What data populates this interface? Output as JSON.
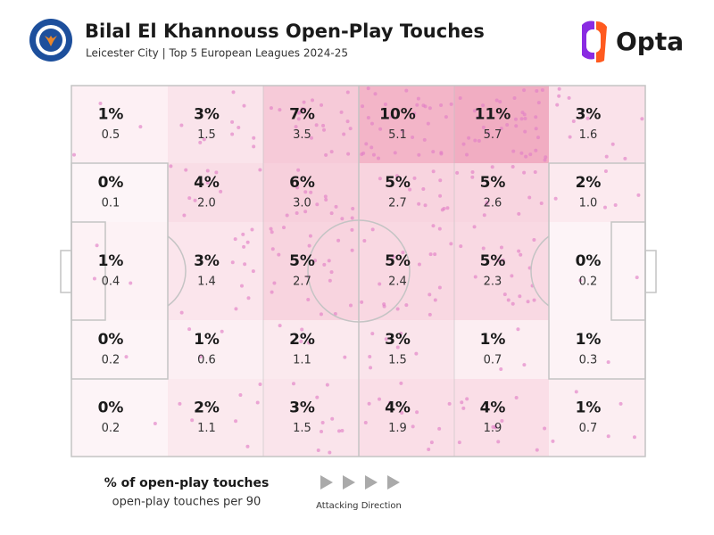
{
  "chart_data": {
    "type": "pitch-heatmap",
    "title": "Bilal El Khannouss Open-Play Touches",
    "subtitle": "Leicester City | Top 5 European Leagues 2024-25",
    "brand": "Opta",
    "direction_label": "Attacking Direction",
    "color": "#e45c86",
    "series": [
      {
        "name": "% of open-play touches",
        "values": [
          1,
          3,
          7,
          10,
          11,
          3,
          0,
          4,
          6,
          5,
          5,
          2,
          1,
          3,
          5,
          5,
          5,
          0,
          0,
          1,
          2,
          3,
          1,
          1,
          0,
          2,
          3,
          4,
          4,
          1
        ],
        "value_labels": [
          "1%",
          "3%",
          "7%",
          "10%",
          "11%",
          "3%",
          "0%",
          "4%",
          "6%",
          "5%",
          "5%",
          "2%",
          "1%",
          "3%",
          "5%",
          "5%",
          "5%",
          "0%",
          "0%",
          "1%",
          "2%",
          "3%",
          "1%",
          "1%",
          "0%",
          "2%",
          "3%",
          "4%",
          "4%",
          "1%"
        ]
      },
      {
        "name": "open-play touches per 90",
        "values": [
          0.5,
          1.5,
          3.5,
          5.1,
          5.7,
          1.6,
          0.1,
          2.0,
          3.0,
          2.7,
          2.6,
          1.0,
          0.4,
          1.4,
          2.7,
          2.4,
          2.3,
          0.2,
          0.2,
          0.6,
          1.1,
          1.5,
          0.7,
          0.3,
          0.2,
          1.1,
          1.5,
          1.9,
          1.9,
          0.7
        ],
        "value_labels": [
          "0.5",
          "1.5",
          "3.5",
          "5.1",
          "5.7",
          "1.6",
          "0.1",
          "2.0",
          "3.0",
          "2.7",
          "2.6",
          "1.0",
          "0.4",
          "1.4",
          "2.7",
          "2.4",
          "2.3",
          "0.2",
          "0.2",
          "0.6",
          "1.1",
          "1.5",
          "0.7",
          "0.3",
          "0.2",
          "1.1",
          "1.5",
          "1.9",
          "1.9",
          "0.7"
        ]
      }
    ]
  }
}
